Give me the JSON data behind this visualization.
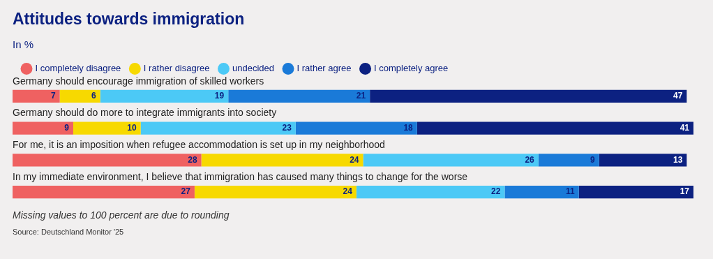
{
  "chart_data": {
    "type": "bar",
    "orientation": "horizontal",
    "stacked": true,
    "title": "Attitudes towards immigration",
    "subtitle": "In %",
    "categories": [
      "Germany should encourage immigration of skilled workers",
      "Germany should do more to integrate immigrants into society",
      "For me, it is an imposition when refugee accommodation is set up in my neighborhood",
      "In my immediate environment, I believe that immigration has caused many things to change for the worse"
    ],
    "series": [
      {
        "name": "I completely disagree",
        "color": "#ef6161",
        "values": [
          7,
          9,
          28,
          27
        ]
      },
      {
        "name": "I rather disagree",
        "color": "#f7d900",
        "values": [
          6,
          10,
          24,
          24
        ]
      },
      {
        "name": "undecided",
        "color": "#4cc9f6",
        "values": [
          19,
          23,
          26,
          22
        ]
      },
      {
        "name": "I rather agree",
        "color": "#1a7ad8",
        "values": [
          21,
          18,
          9,
          11
        ]
      },
      {
        "name": "I completely agree",
        "color": "#0c2181",
        "values": [
          47,
          41,
          13,
          17
        ]
      }
    ],
    "data_labels": true,
    "legend": "top left",
    "annotations": [
      "Missing values to 100 percent are due to rounding",
      "Source: Deutschland Monitor '25"
    ]
  }
}
